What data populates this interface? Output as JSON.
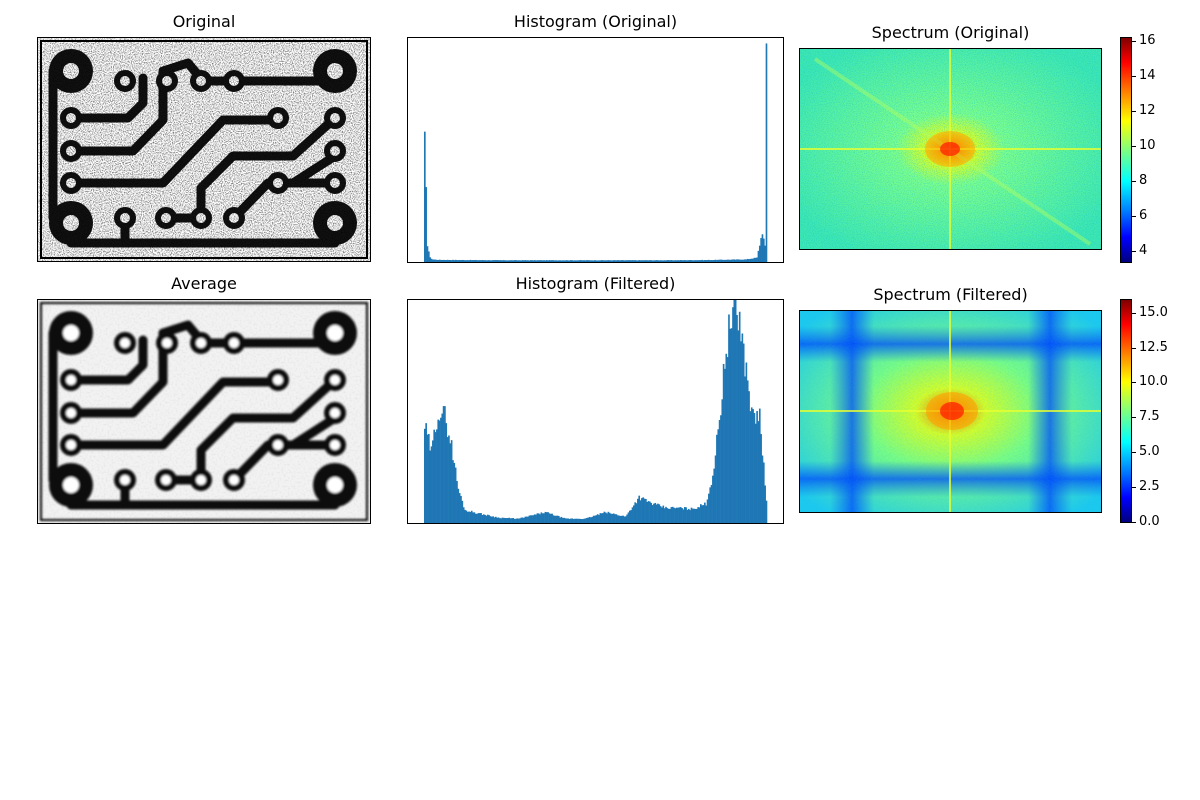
{
  "figure": {
    "panels": [
      {
        "id": "original",
        "title": "Original"
      },
      {
        "id": "hist_original",
        "title": "Histogram (Original)"
      },
      {
        "id": "spectrum_original",
        "title": "Spectrum (Original)"
      },
      {
        "id": "average",
        "title": "Average"
      },
      {
        "id": "hist_filtered",
        "title": "Histogram (Filtered)"
      },
      {
        "id": "spectrum_filtered",
        "title": "Spectrum (Filtered)"
      }
    ]
  },
  "chart_data": [
    {
      "type": "bar",
      "title": "Histogram (Original)",
      "description": "Intensity histogram of noisy image: spikes near dark and bright extremes, near-flat elsewhere",
      "x": [
        0,
        2,
        4,
        6,
        10,
        30,
        60,
        90,
        120,
        150,
        180,
        210,
        240,
        248,
        252,
        254,
        255
      ],
      "values": [
        0.56,
        0.08,
        0.02,
        0.012,
        0.01,
        0.009,
        0.008,
        0.008,
        0.008,
        0.008,
        0.008,
        0.009,
        0.012,
        0.02,
        0.14,
        0.07,
        1.0
      ],
      "xlabel": "",
      "ylabel": "",
      "grid": false
    },
    {
      "type": "bar",
      "title": "Histogram (Filtered)",
      "description": "Intensity histogram after averaging filter: bimodal distribution",
      "x": [
        0,
        5,
        10,
        15,
        20,
        25,
        30,
        40,
        55,
        70,
        90,
        105,
        120,
        135,
        150,
        160,
        170,
        180,
        190,
        200,
        210,
        215,
        220,
        225,
        230,
        235,
        240,
        245,
        250,
        255
      ],
      "values": [
        0.45,
        0.33,
        0.52,
        0.5,
        0.36,
        0.16,
        0.06,
        0.045,
        0.025,
        0.02,
        0.05,
        0.02,
        0.02,
        0.05,
        0.03,
        0.12,
        0.09,
        0.07,
        0.07,
        0.065,
        0.09,
        0.22,
        0.48,
        0.82,
        0.99,
        0.95,
        0.7,
        0.49,
        0.5,
        0.1
      ],
      "xlabel": "",
      "ylabel": "",
      "grid": false
    },
    {
      "type": "heatmap",
      "title": "Spectrum (Original)",
      "colormap": "jet",
      "colorbar": {
        "ticks": [
          4,
          6,
          8,
          10,
          12,
          14,
          16
        ],
        "range": [
          3.3,
          16.2
        ]
      }
    },
    {
      "type": "heatmap",
      "title": "Spectrum (Filtered)",
      "colormap": "jet",
      "colorbar": {
        "ticks": [
          0.0,
          2.5,
          5.0,
          7.5,
          10.0,
          12.5,
          15.0
        ],
        "range": [
          -0.1,
          16.0
        ]
      }
    }
  ],
  "colors": {
    "bar": "#1f77b4",
    "jet": [
      "#00007f",
      "#0000ff",
      "#007fff",
      "#00ffff",
      "#7fff7f",
      "#ffff00",
      "#ff7f00",
      "#ff0000",
      "#7f0000"
    ]
  }
}
